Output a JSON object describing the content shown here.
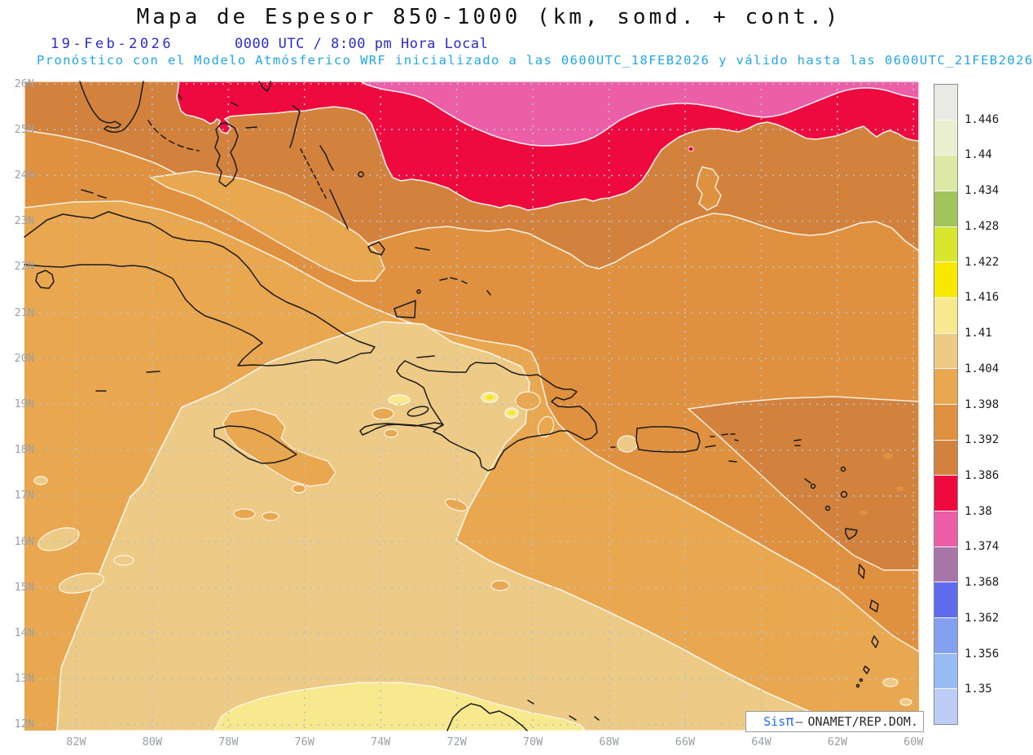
{
  "header": {
    "title": "Mapa de Espesor 850-1000 (km, somd. + cont.)",
    "date": "19-Feb-2026",
    "time": "0000 UTC / 8:00 pm Hora Local",
    "forecast_note": "Pronóstico con el Modelo Atmósferico WRF inicializado a las 0600UTC_18FEB2026 y válido hasta las  0600UTC_21FEB2026"
  },
  "map": {
    "lat_labels": [
      "26N",
      "25N",
      "24N",
      "23N",
      "22N",
      "21N",
      "20N",
      "19N",
      "18N",
      "17N",
      "16N",
      "15N",
      "14N",
      "13N",
      "12N"
    ],
    "lon_labels": [
      "82W",
      "80W",
      "78W",
      "76W",
      "74W",
      "72W",
      "70W",
      "68W",
      "66W",
      "64W",
      "62W",
      "60W"
    ],
    "watermark": {
      "brand": "Sis",
      "pi": "π",
      "separator": "–",
      "agency": "ONAMET/REP.DOM."
    }
  },
  "colorbar": {
    "labels": [
      "1.446",
      "1.44",
      "1.434",
      "1.428",
      "1.422",
      "1.416",
      "1.41",
      "1.404",
      "1.398",
      "1.392",
      "1.386",
      "1.38",
      "1.374",
      "1.368",
      "1.362",
      "1.356",
      "1.35"
    ],
    "colors": [
      "#e9e9e6",
      "#e8f0cf",
      "#dce9a6",
      "#9fc55c",
      "#d8e72d",
      "#f8e800",
      "#f8e88e",
      "#edca86",
      "#e9a74f",
      "#e0913f",
      "#d2823c",
      "#ee0a3e",
      "#ec5fa8",
      "#a775a8",
      "#5f6cee",
      "#84a0f0",
      "#98bbf4",
      "#bdcdf8"
    ]
  },
  "chart_data": {
    "type": "heatmap",
    "subtype": "filled-contour-map",
    "title": "Mapa de Espesor 850-1000 (km, somd. + cont.)",
    "field": "850-1000 hPa thickness",
    "units": "km",
    "region": "Caribbean / Greater and Lesser Antilles",
    "lat_range": [
      "12N",
      "26N"
    ],
    "lon_range": [
      "82W",
      "60W"
    ],
    "contour_levels": [
      1.35,
      1.356,
      1.362,
      1.368,
      1.374,
      1.38,
      1.386,
      1.392,
      1.398,
      1.404,
      1.41,
      1.416,
      1.422,
      1.428,
      1.434,
      1.44,
      1.446
    ],
    "palette_top_to_bottom": [
      "#e9e9e6",
      "#e8f0cf",
      "#dce9a6",
      "#9fc55c",
      "#d8e72d",
      "#f8e800",
      "#f8e88e",
      "#edca86",
      "#e9a74f",
      "#e0913f",
      "#d2823c",
      "#ee0a3e",
      "#ec5fa8",
      "#a775a8",
      "#5f6cee",
      "#84a0f0",
      "#98bbf4",
      "#bdcdf8"
    ],
    "pattern": "values decrease northward: ~1.374-1.38 (pink) far north, 1.38-1.386 (red) band ~24-26N, orange bands 1.386-1.404 mid-basin, 1.404-1.41 (tan) central-south, 1.41-1.416 (pale yellow) far south near 12N, small 1.416-1.422 spots over Hispaniola",
    "grid": "dotted, 1 deg latitude / 2 deg longitude",
    "legend_position": "right"
  }
}
